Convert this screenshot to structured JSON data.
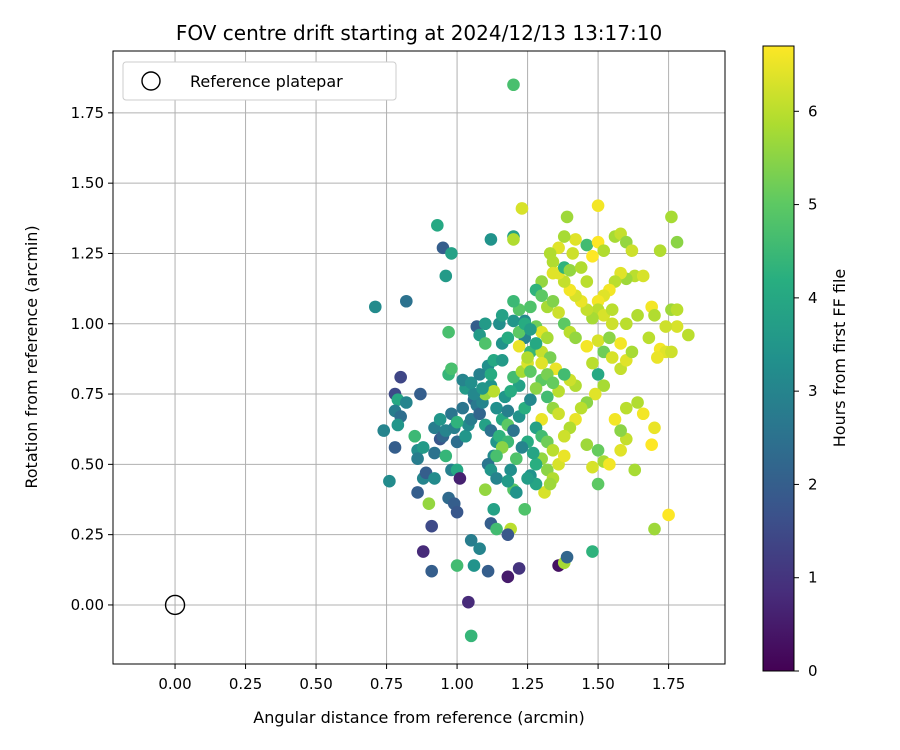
{
  "chart_data": {
    "type": "scatter",
    "title": "FOV centre drift starting at 2024/12/13 13:17:10",
    "xlabel": "Angular distance from reference (arcmin)",
    "ylabel": "Rotation from reference (arcmin)",
    "xlim": [
      -0.22,
      1.95
    ],
    "ylim": [
      -0.21,
      1.97
    ],
    "xticks": [
      "0.00",
      "0.25",
      "0.50",
      "0.75",
      "1.00",
      "1.25",
      "1.50",
      "1.75"
    ],
    "yticks": [
      "0.00",
      "0.25",
      "0.50",
      "0.75",
      "1.00",
      "1.25",
      "1.50",
      "1.75"
    ],
    "grid": true,
    "legend_position": "top-left",
    "legend": [
      "Reference platepar"
    ],
    "reference_point": {
      "x": 0.0,
      "y": 0.0
    },
    "colorbar": {
      "label": "Hours from first FF file",
      "range": [
        0,
        6.7
      ],
      "ticks": [
        "0",
        "1",
        "2",
        "3",
        "4",
        "5",
        "6"
      ],
      "colormap": "viridis"
    },
    "points": [
      [
        1.2,
        1.85,
        4.7
      ],
      [
        0.71,
        1.06,
        3.2
      ],
      [
        0.82,
        1.08,
        2.5
      ],
      [
        0.93,
        1.35,
        4.0
      ],
      [
        0.95,
        1.27,
        2.0
      ],
      [
        0.96,
        1.17,
        3.6
      ],
      [
        0.98,
        1.25,
        3.8
      ],
      [
        1.12,
        1.3,
        3.4
      ],
      [
        1.2,
        1.31,
        3.8
      ],
      [
        1.23,
        1.41,
        6.3
      ],
      [
        1.2,
        1.3,
        5.9
      ],
      [
        0.78,
        0.75,
        1.5
      ],
      [
        0.79,
        0.73,
        4.0
      ],
      [
        0.8,
        0.81,
        1.4
      ],
      [
        0.82,
        0.72,
        3.0
      ],
      [
        0.78,
        0.69,
        2.8
      ],
      [
        0.8,
        0.67,
        2.4
      ],
      [
        0.79,
        0.64,
        3.5
      ],
      [
        0.74,
        0.62,
        3.0
      ],
      [
        0.78,
        0.56,
        2.0
      ],
      [
        0.76,
        0.44,
        3.2
      ],
      [
        0.87,
        0.75,
        2.0
      ],
      [
        0.85,
        0.6,
        4.5
      ],
      [
        0.86,
        0.55,
        3.3
      ],
      [
        0.86,
        0.52,
        2.8
      ],
      [
        0.88,
        0.56,
        3.6
      ],
      [
        0.88,
        0.45,
        3.0
      ],
      [
        0.86,
        0.4,
        2.0
      ],
      [
        0.89,
        0.47,
        2.0
      ],
      [
        0.9,
        0.36,
        5.6
      ],
      [
        0.92,
        0.45,
        3.2
      ],
      [
        0.92,
        0.54,
        2.5
      ],
      [
        0.92,
        0.63,
        2.8
      ],
      [
        0.94,
        0.59,
        1.8
      ],
      [
        0.95,
        0.6,
        2.2
      ],
      [
        0.94,
        0.66,
        3.5
      ],
      [
        0.96,
        0.62,
        3.0
      ],
      [
        0.98,
        0.68,
        2.6
      ],
      [
        0.99,
        0.63,
        2.9
      ],
      [
        1.0,
        0.58,
        2.4
      ],
      [
        0.97,
        0.38,
        2.3
      ],
      [
        0.99,
        0.36,
        2.0
      ],
      [
        1.0,
        0.33,
        1.8
      ],
      [
        0.98,
        0.48,
        2.9
      ],
      [
        1.0,
        0.48,
        4.0
      ],
      [
        1.01,
        0.45,
        0.6
      ],
      [
        1.03,
        0.6,
        3.5
      ],
      [
        1.04,
        0.64,
        3.2
      ],
      [
        1.05,
        0.66,
        2.8
      ],
      [
        1.03,
        0.77,
        3.6
      ],
      [
        1.02,
        0.8,
        3.0
      ],
      [
        0.97,
        0.82,
        4.4
      ],
      [
        0.98,
        0.84,
        4.7
      ],
      [
        0.97,
        0.97,
        4.7
      ],
      [
        1.07,
        0.99,
        2.0
      ],
      [
        1.08,
        0.96,
        3.6
      ],
      [
        1.1,
        0.93,
        4.8
      ],
      [
        1.11,
        0.85,
        3.3
      ],
      [
        1.06,
        0.73,
        2.3
      ],
      [
        1.07,
        0.71,
        2.7
      ],
      [
        1.08,
        0.68,
        2.2
      ],
      [
        1.09,
        0.72,
        3.0
      ],
      [
        1.1,
        0.75,
        5.6
      ],
      [
        1.12,
        0.78,
        3.4
      ],
      [
        1.13,
        0.76,
        6.0
      ],
      [
        1.14,
        0.7,
        3.3
      ],
      [
        1.1,
        0.64,
        3.8
      ],
      [
        1.12,
        0.62,
        2.5
      ],
      [
        1.14,
        0.58,
        3.5
      ],
      [
        1.13,
        0.53,
        3.2
      ],
      [
        1.11,
        0.5,
        2.6
      ],
      [
        1.12,
        0.48,
        3.5
      ],
      [
        1.14,
        0.45,
        3.0
      ],
      [
        1.1,
        0.41,
        5.6
      ],
      [
        1.13,
        0.34,
        3.8
      ],
      [
        1.12,
        0.29,
        2.0
      ],
      [
        1.14,
        0.27,
        4.6
      ],
      [
        1.05,
        0.23,
        2.8
      ],
      [
        1.08,
        0.2,
        3.0
      ],
      [
        1.06,
        0.14,
        3.4
      ],
      [
        1.11,
        0.12,
        2.0
      ],
      [
        1.18,
        0.1,
        0.5
      ],
      [
        1.22,
        0.13,
        1.0
      ],
      [
        1.19,
        0.27,
        6.0
      ],
      [
        1.18,
        0.25,
        1.8
      ],
      [
        1.04,
        0.01,
        0.8
      ],
      [
        1.05,
        -0.11,
        4.4
      ],
      [
        1.0,
        0.14,
        4.6
      ],
      [
        0.91,
        0.28,
        1.5
      ],
      [
        0.88,
        0.19,
        0.8
      ],
      [
        0.91,
        0.12,
        2.0
      ],
      [
        0.96,
        0.53,
        4.4
      ],
      [
        1.16,
        0.66,
        4.0
      ],
      [
        1.18,
        0.64,
        5.0
      ],
      [
        1.2,
        0.62,
        2.6
      ],
      [
        1.22,
        0.67,
        3.4
      ],
      [
        1.24,
        0.7,
        4.2
      ],
      [
        1.26,
        0.73,
        3.1
      ],
      [
        1.22,
        0.78,
        3.8
      ],
      [
        1.2,
        0.81,
        4.6
      ],
      [
        1.23,
        0.83,
        5.8
      ],
      [
        1.25,
        0.86,
        6.3
      ],
      [
        1.26,
        0.9,
        4.4
      ],
      [
        1.24,
        0.95,
        3.0
      ],
      [
        1.22,
        0.97,
        5.0
      ],
      [
        1.2,
        1.01,
        3.5
      ],
      [
        1.22,
        1.05,
        4.9
      ],
      [
        1.2,
        1.08,
        4.5
      ],
      [
        1.24,
        1.01,
        3.2
      ],
      [
        1.28,
        0.99,
        5.2
      ],
      [
        1.3,
        0.97,
        6.4
      ],
      [
        1.32,
        0.95,
        5.8
      ],
      [
        1.3,
        0.9,
        6.1
      ],
      [
        1.33,
        0.88,
        5.3
      ],
      [
        1.35,
        0.84,
        6.5
      ],
      [
        1.3,
        0.8,
        5.0
      ],
      [
        1.28,
        0.77,
        5.5
      ],
      [
        1.32,
        0.74,
        4.6
      ],
      [
        1.34,
        0.7,
        5.6
      ],
      [
        1.36,
        0.68,
        6.2
      ],
      [
        1.3,
        0.66,
        6.5
      ],
      [
        1.28,
        0.63,
        3.8
      ],
      [
        1.3,
        0.6,
        4.6
      ],
      [
        1.32,
        0.58,
        5.2
      ],
      [
        1.34,
        0.55,
        6.0
      ],
      [
        1.3,
        0.52,
        5.6
      ],
      [
        1.28,
        0.5,
        4.2
      ],
      [
        1.32,
        0.48,
        5.5
      ],
      [
        1.34,
        0.45,
        5.9
      ],
      [
        1.36,
        0.5,
        6.3
      ],
      [
        1.38,
        0.53,
        6.5
      ],
      [
        1.31,
        0.4,
        6.3
      ],
      [
        1.33,
        0.43,
        5.7
      ],
      [
        1.25,
        0.58,
        4.1
      ],
      [
        1.27,
        0.54,
        3.9
      ],
      [
        1.23,
        0.56,
        3.0
      ],
      [
        1.21,
        0.52,
        4.8
      ],
      [
        1.19,
        0.48,
        3.3
      ],
      [
        1.2,
        0.41,
        4.9
      ],
      [
        1.18,
        0.44,
        3.6
      ],
      [
        1.15,
        0.6,
        4.3
      ],
      [
        1.18,
        0.69,
        2.9
      ],
      [
        1.17,
        0.74,
        3.5
      ],
      [
        1.19,
        0.76,
        4.1
      ],
      [
        1.36,
        0.14,
        0.3
      ],
      [
        1.38,
        0.15,
        5.8
      ],
      [
        1.39,
        0.17,
        2.2
      ],
      [
        1.48,
        0.19,
        4.3
      ],
      [
        1.39,
        1.38,
        5.7
      ],
      [
        1.5,
        1.42,
        6.6
      ],
      [
        1.42,
        1.3,
        6.4
      ],
      [
        1.46,
        1.28,
        4.6
      ],
      [
        1.48,
        1.24,
        6.7
      ],
      [
        1.5,
        1.29,
        6.7
      ],
      [
        1.52,
        1.26,
        5.9
      ],
      [
        1.56,
        1.31,
        5.8
      ],
      [
        1.58,
        1.32,
        6.1
      ],
      [
        1.6,
        1.29,
        5.6
      ],
      [
        1.62,
        1.26,
        6.2
      ],
      [
        1.72,
        1.26,
        5.9
      ],
      [
        1.76,
        1.38,
        5.8
      ],
      [
        1.78,
        1.29,
        5.5
      ],
      [
        1.76,
        1.05,
        5.7
      ],
      [
        1.78,
        1.05,
        6.0
      ],
      [
        1.78,
        0.99,
        6.3
      ],
      [
        1.74,
        0.99,
        6.2
      ],
      [
        1.69,
        1.06,
        6.6
      ],
      [
        1.7,
        1.03,
        5.9
      ],
      [
        1.68,
        0.95,
        6.0
      ],
      [
        1.72,
        0.91,
        6.6
      ],
      [
        1.74,
        0.9,
        6.4
      ],
      [
        1.71,
        0.88,
        6.5
      ],
      [
        1.76,
        0.9,
        6.2
      ],
      [
        1.82,
        0.96,
        6.0
      ],
      [
        1.63,
        1.17,
        6.0
      ],
      [
        1.66,
        1.17,
        6.3
      ],
      [
        1.6,
        1.16,
        5.7
      ],
      [
        1.58,
        1.18,
        6.4
      ],
      [
        1.56,
        1.15,
        6.0
      ],
      [
        1.54,
        1.12,
        6.6
      ],
      [
        1.52,
        1.1,
        6.4
      ],
      [
        1.5,
        1.08,
        6.6
      ],
      [
        1.5,
        1.05,
        6.0
      ],
      [
        1.52,
        1.03,
        6.3
      ],
      [
        1.48,
        1.02,
        5.8
      ],
      [
        1.46,
        1.05,
        6.1
      ],
      [
        1.44,
        1.08,
        6.5
      ],
      [
        1.42,
        1.1,
        6.3
      ],
      [
        1.4,
        1.12,
        6.6
      ],
      [
        1.38,
        1.15,
        6.1
      ],
      [
        1.36,
        1.18,
        6.4
      ],
      [
        1.34,
        1.22,
        5.9
      ],
      [
        1.38,
        1.2,
        4.3
      ],
      [
        1.4,
        1.19,
        5.6
      ],
      [
        1.34,
        1.18,
        6.4
      ],
      [
        1.3,
        1.15,
        5.6
      ],
      [
        1.28,
        1.12,
        4.3
      ],
      [
        1.32,
        1.06,
        5.8
      ],
      [
        1.36,
        1.04,
        6.2
      ],
      [
        1.38,
        1.0,
        5.0
      ],
      [
        1.4,
        0.97,
        6.0
      ],
      [
        1.42,
        0.95,
        5.6
      ],
      [
        1.46,
        0.92,
        6.6
      ],
      [
        1.5,
        0.94,
        6.3
      ],
      [
        1.52,
        0.9,
        5.2
      ],
      [
        1.48,
        0.86,
        6.0
      ],
      [
        1.5,
        0.82,
        4.0
      ],
      [
        1.52,
        0.78,
        5.8
      ],
      [
        1.49,
        0.75,
        6.4
      ],
      [
        1.46,
        0.72,
        5.5
      ],
      [
        1.44,
        0.7,
        6.0
      ],
      [
        1.42,
        0.66,
        6.5
      ],
      [
        1.4,
        0.63,
        5.9
      ],
      [
        1.38,
        0.6,
        6.2
      ],
      [
        1.46,
        0.57,
        5.7
      ],
      [
        1.5,
        0.55,
        5.1
      ],
      [
        1.52,
        0.51,
        5.8
      ],
      [
        1.48,
        0.49,
        6.3
      ],
      [
        1.5,
        0.43,
        5.0
      ],
      [
        1.54,
        0.5,
        6.6
      ],
      [
        1.58,
        0.55,
        6.4
      ],
      [
        1.6,
        0.59,
        6.1
      ],
      [
        1.58,
        0.62,
        5.5
      ],
      [
        1.56,
        0.66,
        6.6
      ],
      [
        1.6,
        0.7,
        6.0
      ],
      [
        1.64,
        0.72,
        5.9
      ],
      [
        1.66,
        0.68,
        6.6
      ],
      [
        1.7,
        0.63,
        6.5
      ],
      [
        1.69,
        0.57,
        6.7
      ],
      [
        1.63,
        0.48,
        5.8
      ],
      [
        1.7,
        0.27,
        5.7
      ],
      [
        1.75,
        0.32,
        6.7
      ],
      [
        1.58,
        0.84,
        6.1
      ],
      [
        1.6,
        0.87,
        6.4
      ],
      [
        1.62,
        0.9,
        5.8
      ],
      [
        1.58,
        0.93,
        6.6
      ],
      [
        1.6,
        1.0,
        6.0
      ],
      [
        1.64,
        1.03,
        5.9
      ],
      [
        1.55,
        0.88,
        6.3
      ],
      [
        1.54,
        0.95,
        5.5
      ],
      [
        1.55,
        1.0,
        6.2
      ],
      [
        1.55,
        1.05,
        6.0
      ],
      [
        1.46,
        1.15,
        6.0
      ],
      [
        1.44,
        1.2,
        5.9
      ],
      [
        1.41,
        1.25,
        6.2
      ],
      [
        1.38,
        1.31,
        5.8
      ],
      [
        1.36,
        1.27,
        6.4
      ],
      [
        1.33,
        1.25,
        5.9
      ],
      [
        1.34,
        1.08,
        5.4
      ],
      [
        1.3,
        1.1,
        5.0
      ],
      [
        1.26,
        1.06,
        4.8
      ],
      [
        1.22,
        0.92,
        6.5
      ],
      [
        1.25,
        0.88,
        5.9
      ],
      [
        1.26,
        0.83,
        5.0
      ],
      [
        1.3,
        0.86,
        6.4
      ],
      [
        1.32,
        0.82,
        5.3
      ],
      [
        1.18,
        0.58,
        4.5
      ],
      [
        1.16,
        0.56,
        5.5
      ],
      [
        1.14,
        0.53,
        4.7
      ],
      [
        1.21,
        0.4,
        3.4
      ],
      [
        1.24,
        0.34,
        4.8
      ],
      [
        1.42,
        0.78,
        5.9
      ],
      [
        1.4,
        0.8,
        6.2
      ],
      [
        1.38,
        0.82,
        4.6
      ],
      [
        1.36,
        0.76,
        6.0
      ],
      [
        1.34,
        0.79,
        5.1
      ],
      [
        1.26,
        0.46,
        3.4
      ],
      [
        1.28,
        0.43,
        3.9
      ],
      [
        1.25,
        0.45,
        3.7
      ],
      [
        1.0,
        0.65,
        4.3
      ],
      [
        1.02,
        0.7,
        2.6
      ],
      [
        1.06,
        0.75,
        3.1
      ],
      [
        1.09,
        0.77,
        3.5
      ],
      [
        1.05,
        0.79,
        3.3
      ],
      [
        1.08,
        0.82,
        2.9
      ],
      [
        1.12,
        0.82,
        4.1
      ],
      [
        1.13,
        0.87,
        4.0
      ],
      [
        1.16,
        0.87,
        3.6
      ],
      [
        1.16,
        0.93,
        3.4
      ],
      [
        1.18,
        0.95,
        4.1
      ],
      [
        1.1,
        1.0,
        3.6
      ],
      [
        1.15,
        1.0,
        3.3
      ],
      [
        1.16,
        1.03,
        3.8
      ],
      [
        1.24,
        1.0,
        4.1
      ],
      [
        1.26,
        0.98,
        3.7
      ],
      [
        1.28,
        0.93,
        4.0
      ]
    ]
  }
}
